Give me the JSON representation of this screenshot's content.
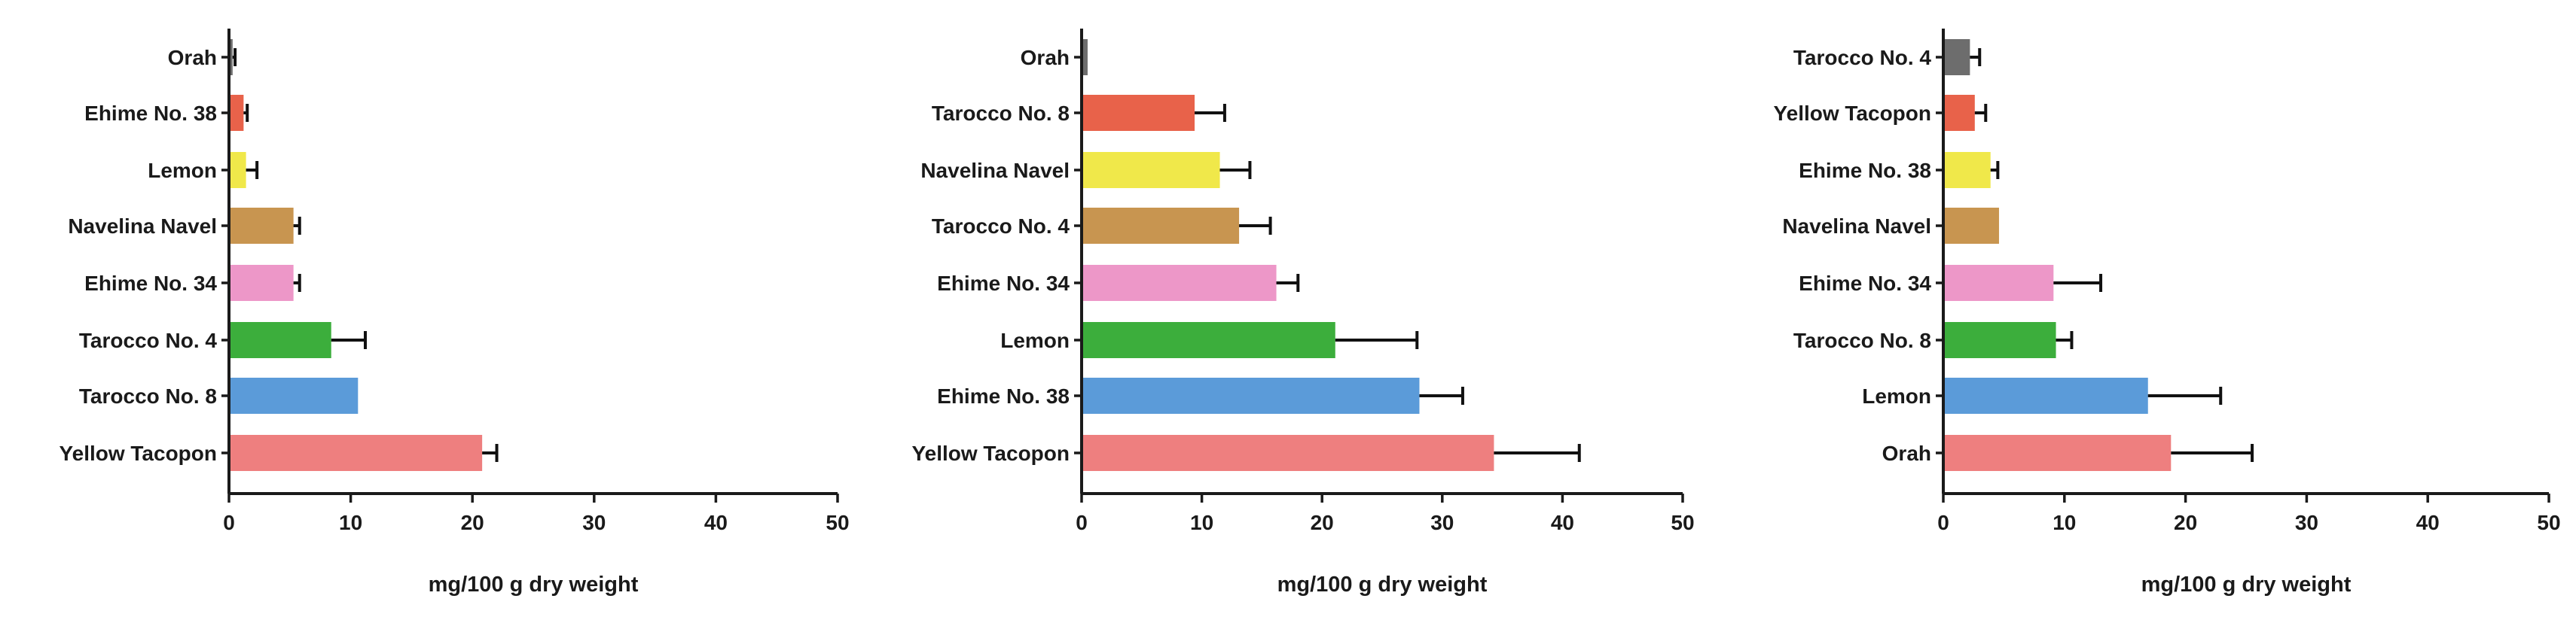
{
  "chart_data": [
    {
      "type": "bar",
      "orientation": "horizontal",
      "categories": [
        "Orah",
        "Ehime No. 38",
        "Lemon",
        "Navelina Navel",
        "Ehime No. 34",
        "Tarocco No. 4",
        "Tarocco No. 8",
        "Yellow Tacopon"
      ],
      "values": [
        0.3,
        1.2,
        1.4,
        5.3,
        5.3,
        8.4,
        10.6,
        20.8
      ],
      "errors": [
        0.2,
        0.3,
        0.9,
        0.5,
        0.5,
        2.8,
        0,
        1.2
      ],
      "colors": [
        "#6d6d6d",
        "#e8624a",
        "#f0e84a",
        "#c89550",
        "#ed97c8",
        "#3cae3c",
        "#5b9bd9",
        "#ee7f7f"
      ],
      "xlabel": "mg/100 g dry weight",
      "xlim": [
        0,
        50
      ],
      "xticks": [
        0,
        10,
        20,
        30,
        40,
        50
      ]
    },
    {
      "type": "bar",
      "orientation": "horizontal",
      "categories": [
        "Orah",
        "Tarocco No. 8",
        "Navelina Navel",
        "Tarocco No. 4",
        "Ehime No. 34",
        "Lemon",
        "Ehime No. 38",
        "Yellow Tacopon"
      ],
      "values": [
        0.5,
        9.4,
        11.5,
        13.1,
        16.2,
        21.1,
        28.1,
        34.3
      ],
      "errors": [
        0,
        2.5,
        2.5,
        2.6,
        1.8,
        6.8,
        3.6,
        7.1
      ],
      "colors": [
        "#6d6d6d",
        "#e8624a",
        "#f0e84a",
        "#c89550",
        "#ed97c8",
        "#3cae3c",
        "#5b9bd9",
        "#ee7f7f"
      ],
      "xlabel": "mg/100 g dry weight",
      "xlim": [
        0,
        50
      ],
      "xticks": [
        0,
        10,
        20,
        30,
        40,
        50
      ]
    },
    {
      "type": "bar",
      "orientation": "horizontal",
      "categories": [
        "Tarocco No. 4",
        "Yellow Tacopon",
        "Ehime No. 38",
        "Navelina Navel",
        "Ehime No. 34",
        "Tarocco No. 8",
        "Lemon",
        "Orah"
      ],
      "values": [
        2.2,
        2.6,
        3.9,
        4.6,
        9.1,
        9.3,
        16.9,
        18.8
      ],
      "errors": [
        0.8,
        0.9,
        0.6,
        0,
        3.9,
        1.3,
        6.0,
        6.7
      ],
      "colors": [
        "#6d6d6d",
        "#e8624a",
        "#f0e84a",
        "#c89550",
        "#ed97c8",
        "#3cae3c",
        "#5b9bd9",
        "#ee7f7f"
      ],
      "xlabel": "mg/100 g dry weight",
      "xlim": [
        0,
        50
      ],
      "xticks": [
        0,
        10,
        20,
        30,
        40,
        50
      ]
    }
  ]
}
